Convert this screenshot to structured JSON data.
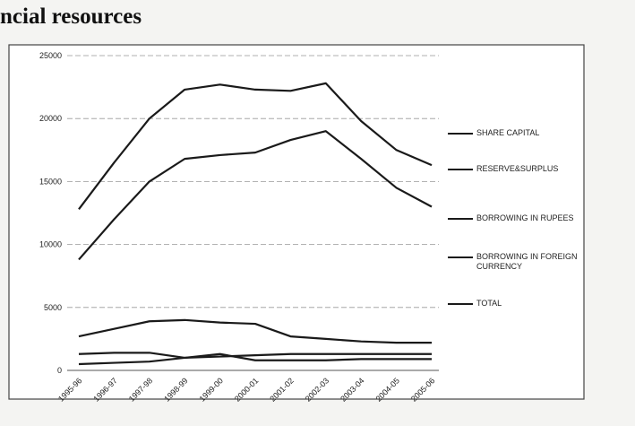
{
  "chart_data": {
    "type": "line",
    "title": "ncial resources",
    "categories": [
      "1995-96",
      "1996-97",
      "1997-98",
      "1998-99",
      "1999-00",
      "2000-01",
      "2001-02",
      "2002-03",
      "2003-04",
      "2004-05",
      "2005-06"
    ],
    "series": [
      {
        "name": "SHARE CAPITAL",
        "color": "#1a1a1a",
        "values": [
          500,
          600,
          700,
          1000,
          1300,
          800,
          800,
          800,
          900,
          900,
          900
        ]
      },
      {
        "name": "RESERVE&SURPLUS",
        "color": "#1a1a1a",
        "values": [
          8800,
          12000,
          15000,
          16800,
          17100,
          17300,
          18300,
          19000,
          16800,
          14500,
          13000
        ]
      },
      {
        "name": "BORROWING IN RUPEES",
        "color": "#1a1a1a",
        "values": [
          2700,
          3300,
          3900,
          4000,
          3800,
          3700,
          2700,
          2500,
          2300,
          2200,
          2200
        ]
      },
      {
        "name": "BORROWING IN FOREIGN CURRENCY",
        "color": "#1a1a1a",
        "values": [
          1300,
          1400,
          1400,
          1000,
          1100,
          1200,
          1300,
          1300,
          1300,
          1300,
          1300
        ]
      },
      {
        "name": "TOTAL",
        "color": "#1a1a1a",
        "values": [
          12800,
          16500,
          20000,
          22300,
          22700,
          22300,
          22200,
          22800,
          19800,
          17500,
          16300
        ]
      }
    ],
    "ylim": [
      0,
      25000
    ],
    "yticks": [
      0,
      5000,
      10000,
      15000,
      20000,
      25000
    ],
    "grid": true
  }
}
